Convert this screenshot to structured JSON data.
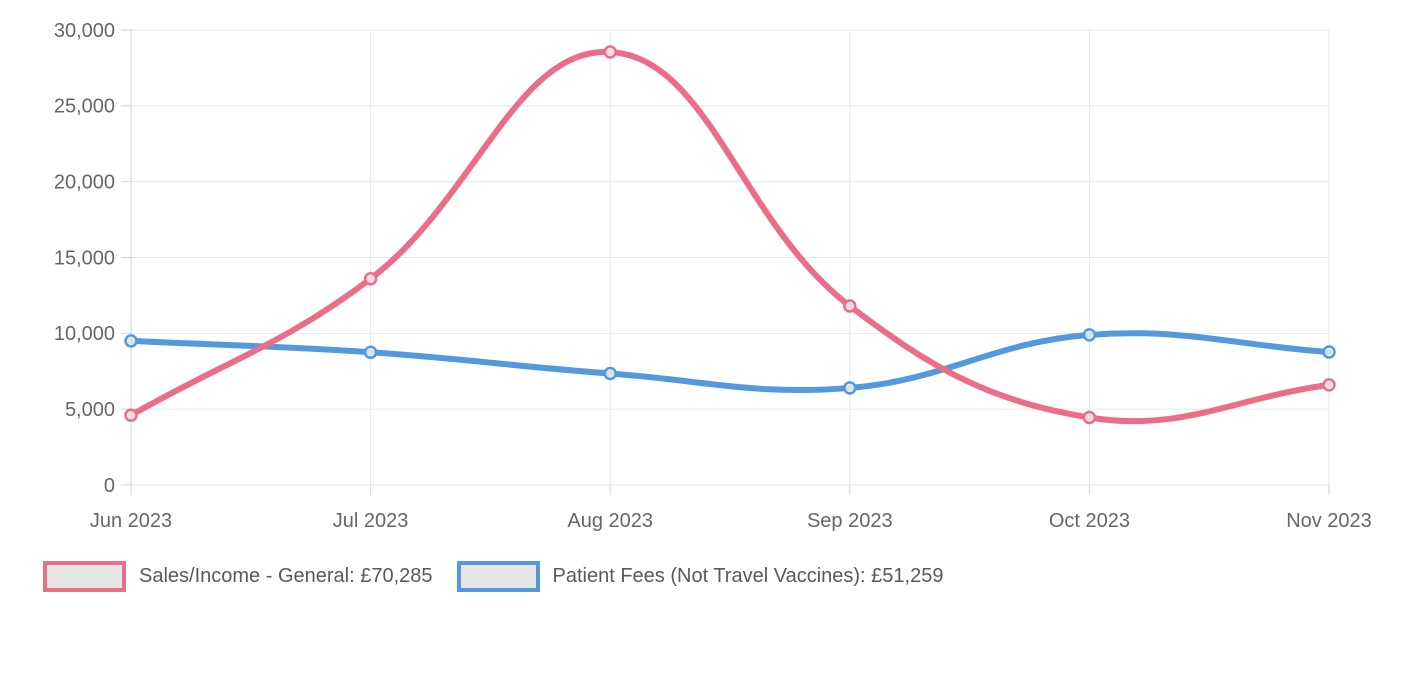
{
  "chart_data": {
    "type": "line",
    "title": "",
    "xlabel": "",
    "ylabel": "",
    "categories": [
      "Jun 2023",
      "Jul 2023",
      "Aug 2023",
      "Sep 2023",
      "Oct 2023",
      "Nov 2023"
    ],
    "series": [
      {
        "name": "Sales/Income - General",
        "legend_label": "Sales/Income - General: £70,285",
        "total_shown": "£70,285",
        "color": "#ec6d88",
        "values": [
          4600,
          13600,
          28550,
          11800,
          4450,
          6600
        ]
      },
      {
        "name": "Patient Fees (Not Travel Vaccines)",
        "legend_label": "Patient Fees (Not Travel Vaccines): £51,259",
        "total_shown": "£51,259",
        "color": "#5499dd",
        "values": [
          9500,
          8750,
          7350,
          6400,
          9900,
          8770
        ]
      }
    ],
    "y_ticks": [
      0,
      5000,
      10000,
      15000,
      20000,
      25000,
      30000
    ],
    "y_tick_labels": [
      "0",
      "5,000",
      "10,000",
      "15,000",
      "20,000",
      "25,000",
      "30,000"
    ],
    "ylim": [
      0,
      30000
    ],
    "grid": true,
    "line_tension": 0.4,
    "legend_position": "bottom-left",
    "colors": {
      "axis_text": "#666666",
      "legend_text": "#595959",
      "grid_line": "#e7e7e7",
      "axis_border": "#d2d2d2",
      "marker_fill": "#efefef",
      "legend_swatch_fill": "#e6e6e6"
    }
  }
}
